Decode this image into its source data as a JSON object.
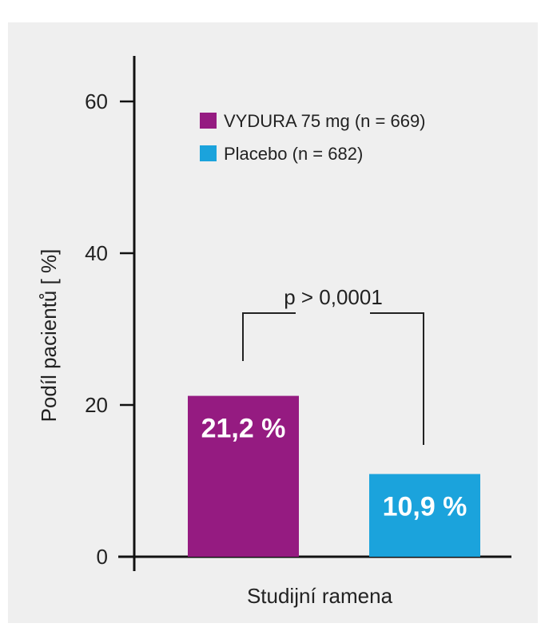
{
  "chart_data": {
    "type": "bar",
    "categories": [
      "VYDURA 75 mg (n = 669)",
      "Placebo (n = 682)"
    ],
    "values": [
      21.2,
      10.9
    ],
    "data_labels": [
      "21,2 %",
      "10,9 %"
    ],
    "colors": [
      "#951b81",
      "#1ba3dc"
    ],
    "xlabel": "Studijní ramena",
    "ylabel": "Podíl pacientů [ %]",
    "ylim": [
      0,
      60
    ],
    "yticks": [
      0,
      20,
      40,
      60
    ],
    "legend": {
      "placement": "top-right",
      "entries": [
        {
          "label": "VYDURA 75 mg (n = 669)",
          "color": "#951b81"
        },
        {
          "label": "Placebo (n = 682)",
          "color": "#1ba3dc"
        }
      ]
    },
    "annotation": "p > 0,0001",
    "grid": false
  }
}
